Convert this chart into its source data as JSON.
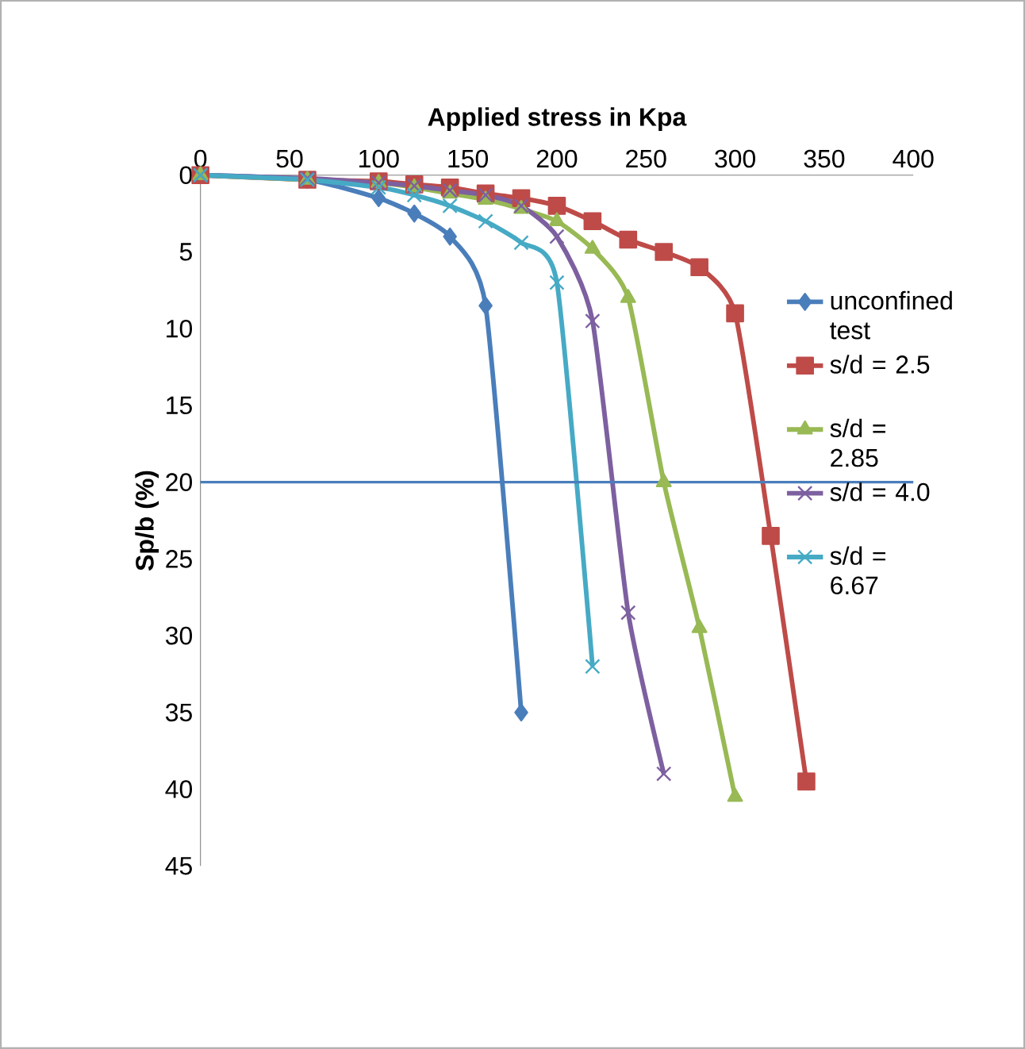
{
  "chart_data": {
    "type": "line",
    "xlabel": "Applied stress in Kpa",
    "ylabel": "Sp/b (%)",
    "xlim": [
      0,
      400
    ],
    "xticks": [
      0,
      50,
      100,
      150,
      200,
      250,
      300,
      350,
      400
    ],
    "ylim": [
      45,
      0
    ],
    "yticks": [
      0,
      5,
      10,
      15,
      20,
      25,
      30,
      35,
      40,
      45
    ],
    "legend": "right",
    "grid": false,
    "line_style": "solid",
    "series": [
      {
        "name": "unconfined test",
        "color": "#4a7ebb",
        "marker": "diamond",
        "x": [
          0,
          60,
          100,
          120,
          140,
          160,
          180
        ],
        "values": [
          0,
          0.3,
          1.5,
          2.5,
          4,
          8.5,
          35
        ]
      },
      {
        "name": "s/d = 2.5",
        "color": "#be4b48",
        "marker": "square",
        "x": [
          0,
          60,
          100,
          120,
          140,
          160,
          180,
          200,
          220,
          240,
          260,
          280,
          300,
          320,
          340
        ],
        "values": [
          0,
          0.3,
          0.4,
          0.6,
          0.8,
          1.2,
          1.5,
          2,
          3,
          4.2,
          5,
          6,
          9,
          23.5,
          39.5
        ]
      },
      {
        "name": "s/d = 2.85",
        "color": "#98b954",
        "marker": "triangle",
        "x": [
          0,
          60,
          100,
          120,
          140,
          160,
          180,
          200,
          220,
          240,
          260,
          280,
          300
        ],
        "values": [
          0,
          0.3,
          0.5,
          0.8,
          1.2,
          1.6,
          2.2,
          3,
          4.8,
          8,
          20,
          29.5,
          40.5
        ]
      },
      {
        "name": "s/d = 4.0",
        "color": "#7d60a0",
        "marker": "cross",
        "x": [
          0,
          60,
          100,
          120,
          140,
          160,
          180,
          200,
          220,
          240,
          260
        ],
        "values": [
          0,
          0.2,
          0.5,
          0.7,
          1,
          1.3,
          2,
          4,
          9.5,
          28.5,
          39
        ]
      },
      {
        "name": "s/d = 6.67",
        "color": "#46aac5",
        "marker": "cross",
        "x": [
          0,
          60,
          100,
          120,
          140,
          160,
          180,
          200,
          220
        ],
        "values": [
          0,
          0.3,
          0.8,
          1.3,
          2,
          3,
          4.4,
          7,
          32
        ]
      }
    ],
    "ref_lines": [
      {
        "axis": "y",
        "value": 20,
        "color": "#4a7ebb"
      }
    ]
  }
}
